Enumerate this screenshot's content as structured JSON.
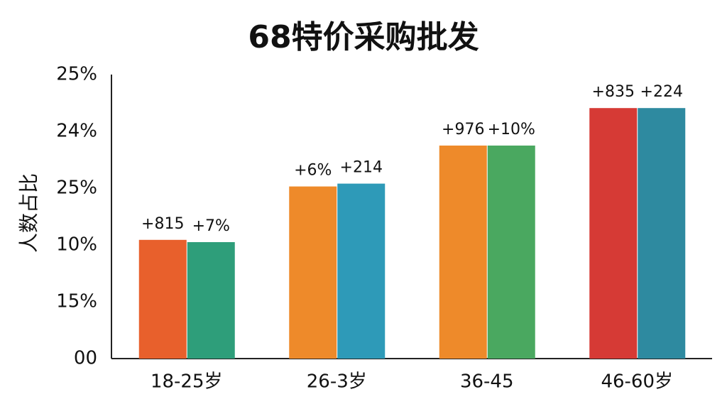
{
  "chart_data": {
    "type": "bar",
    "title": "68特价采购批发",
    "y_label": "人数占比",
    "categories": [
      "18-25岁",
      "26-3岁",
      "36-45",
      "46-60岁"
    ],
    "series": [
      {
        "colors": [
          "#e8602c",
          "#ee8a2a",
          "#ee8a2a",
          "#d63a35"
        ],
        "values": [
          2.09,
          3.03,
          3.75,
          4.41
        ],
        "bar_labels": [
          "+815",
          "+6%",
          "+976",
          "+835"
        ]
      },
      {
        "colors": [
          "#2e9e7a",
          "#2e9ab8",
          "#4aa860",
          "#2e8aa0"
        ],
        "values": [
          2.05,
          3.08,
          3.75,
          4.41
        ],
        "bar_labels": [
          "+7%",
          "+214",
          "+10%",
          "+224"
        ]
      }
    ],
    "ylim": [
      0,
      5
    ],
    "yticks": [
      {
        "value": 0,
        "label": "00"
      },
      {
        "value": 1,
        "label": "15%"
      },
      {
        "value": 2,
        "label": "10%"
      },
      {
        "value": 3,
        "label": "25%"
      },
      {
        "value": 4,
        "label": "24%"
      },
      {
        "value": 5,
        "label": "25%"
      }
    ],
    "grid": false
  }
}
